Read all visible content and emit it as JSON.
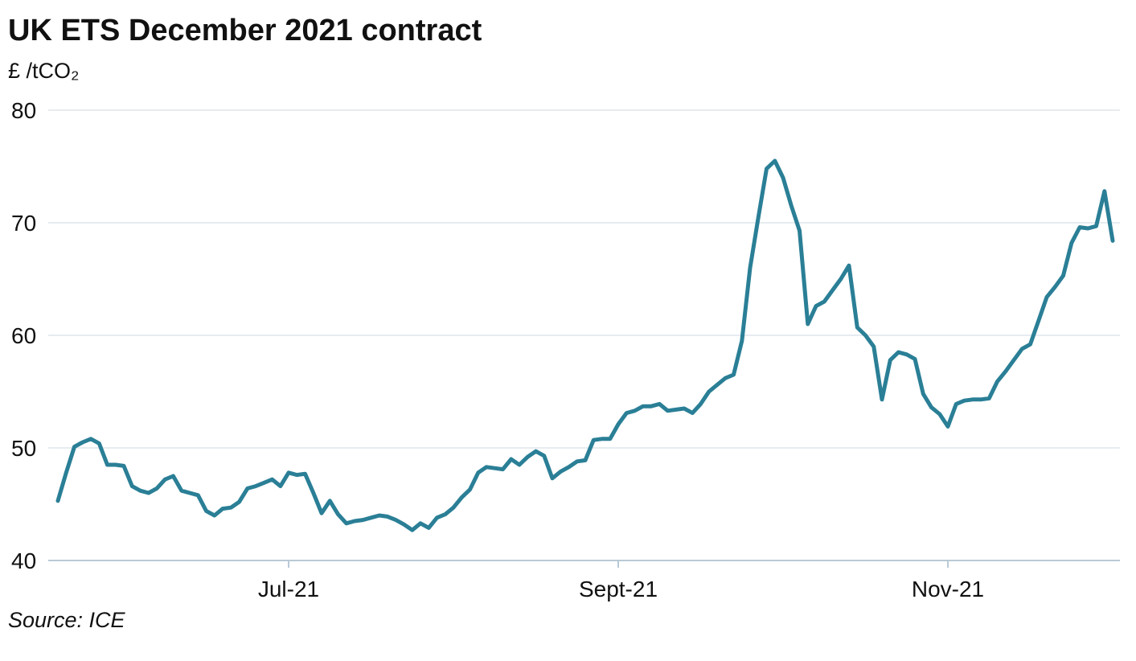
{
  "chart_data": {
    "type": "line",
    "title": "UK ETS December 2021 contract",
    "subtitle": "£ /tCO₂",
    "source": "Source: ICE",
    "categories": [
      null,
      null,
      null,
      null,
      null,
      null,
      null,
      null,
      null,
      null,
      null,
      null,
      null,
      null,
      null,
      null,
      null,
      null,
      null,
      null,
      null,
      null,
      null,
      null,
      null,
      null,
      null,
      null,
      "Jul-21",
      null,
      null,
      null,
      null,
      null,
      null,
      null,
      null,
      null,
      null,
      null,
      null,
      null,
      null,
      null,
      null,
      null,
      null,
      null,
      null,
      null,
      null,
      null,
      null,
      null,
      null,
      null,
      null,
      null,
      null,
      null,
      null,
      null,
      null,
      null,
      null,
      null,
      null,
      null,
      "Sept-21",
      null,
      null,
      null,
      null,
      null,
      null,
      null,
      null,
      null,
      null,
      null,
      null,
      null,
      null,
      null,
      null,
      null,
      null,
      null,
      null,
      null,
      null,
      null,
      null,
      null,
      null,
      null,
      null,
      null,
      null,
      null,
      null,
      null,
      null,
      null,
      null,
      null,
      null,
      null,
      "Nov-21",
      null,
      null,
      null,
      null,
      null,
      null,
      null,
      null,
      null,
      null,
      null,
      null,
      null,
      null,
      null,
      null,
      null,
      null,
      null,
      null
    ],
    "series": [
      {
        "name": "UK ETS December 2021 contract",
        "color": "#2a7f96",
        "values": [
          45.3,
          47.8,
          50.1,
          50.5,
          50.8,
          50.4,
          48.5,
          48.5,
          48.4,
          46.6,
          46.2,
          46.0,
          46.4,
          47.2,
          47.5,
          46.2,
          46.0,
          45.8,
          44.4,
          44.0,
          44.6,
          44.7,
          45.2,
          46.4,
          46.6,
          46.9,
          47.2,
          46.6,
          47.8,
          47.6,
          47.7,
          46.0,
          44.2,
          45.3,
          44.1,
          43.3,
          43.5,
          43.6,
          43.8,
          44.0,
          43.9,
          43.6,
          43.2,
          42.7,
          43.3,
          42.9,
          43.8,
          44.1,
          44.7,
          45.6,
          46.3,
          47.8,
          48.3,
          48.2,
          48.1,
          49.0,
          48.5,
          49.2,
          49.7,
          49.3,
          47.3,
          47.9,
          48.3,
          48.8,
          48.9,
          50.7,
          50.8,
          50.8,
          52.1,
          53.1,
          53.3,
          53.7,
          53.7,
          53.9,
          53.3,
          53.4,
          53.5,
          53.1,
          53.9,
          55.0,
          55.6,
          56.2,
          56.5,
          59.5,
          66.0,
          70.5,
          74.8,
          75.5,
          74.0,
          71.5,
          69.3,
          61.0,
          62.6,
          63.0,
          64.0,
          65.0,
          66.2,
          60.7,
          60.0,
          59.0,
          54.3,
          57.8,
          58.5,
          58.3,
          57.9,
          54.8,
          53.6,
          53.0,
          51.9,
          53.9,
          54.2,
          54.3,
          54.3,
          54.4,
          55.9,
          56.8,
          57.8,
          58.8,
          59.2,
          61.3,
          63.4,
          64.3,
          65.3,
          68.2,
          69.6,
          69.5,
          69.7,
          72.8,
          68.4
        ]
      }
    ],
    "ylim": [
      40,
      80
    ],
    "yticks": [
      40,
      50,
      60,
      70,
      80
    ],
    "grid": true
  }
}
